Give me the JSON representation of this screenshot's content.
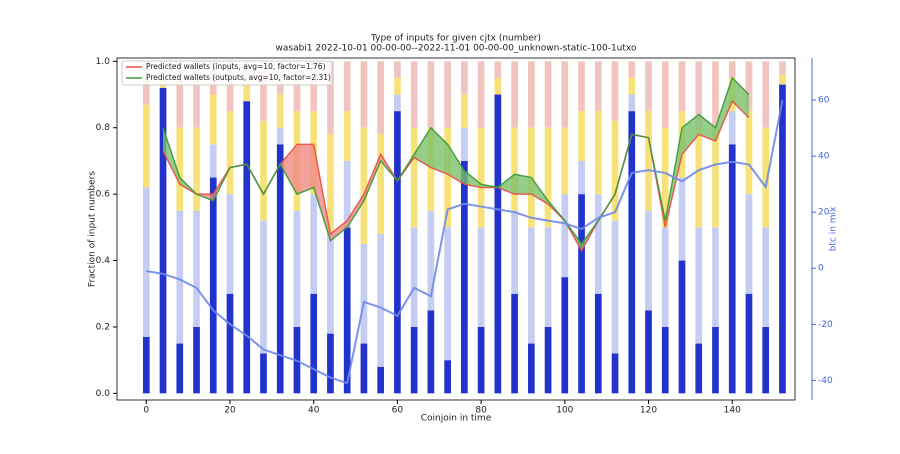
{
  "chart_data": {
    "type": "bar",
    "title": "Type of inputs for given cjtx (number)",
    "subtitle": "wasabi1 2022-10-01 00-00-00--2022-11-01 00-00-00_unknown-static-100-1utxo",
    "x_label": "Coinjoin in time",
    "y_label": "Fraction of input numbers",
    "y2_label": "btc in mix",
    "x": [
      0,
      4,
      8,
      12,
      16,
      20,
      24,
      28,
      32,
      36,
      40,
      44,
      48,
      52,
      56,
      60,
      64,
      68,
      72,
      76,
      80,
      84,
      88,
      92,
      96,
      100,
      104,
      108,
      112,
      116,
      120,
      124,
      128,
      132,
      136,
      140,
      144,
      148,
      152
    ],
    "xlim": [
      -7,
      155
    ],
    "xticks": [
      0,
      20,
      40,
      60,
      80,
      100,
      120,
      140
    ],
    "ylim": [
      -0.02,
      1.01
    ],
    "yticks": [
      {
        "value": 0,
        "label": "0.0"
      },
      {
        "value": 0.2,
        "label": "0.2"
      },
      {
        "value": 0.4,
        "label": "0.4"
      },
      {
        "value": 0.6,
        "label": "0.6"
      },
      {
        "value": 0.8,
        "label": "0.8"
      },
      {
        "value": 1,
        "label": "1.0"
      }
    ],
    "y2lim": [
      -47,
      75
    ],
    "y2ticks": [
      -40,
      -20,
      0,
      20,
      40,
      60
    ],
    "legend": "upper left",
    "stack_series": [
      {
        "color": "#2233cc",
        "values": [
          0.17,
          0.92,
          0.15,
          0.2,
          0.65,
          0.3,
          0.88,
          0.12,
          0.75,
          0.2,
          0.3,
          0.18,
          0.5,
          0.15,
          0.08,
          0.85,
          0.2,
          0.25,
          0.1,
          0.7,
          0.2,
          0.9,
          0.3,
          0.15,
          0.2,
          0.35,
          0.6,
          0.3,
          0.12,
          0.85,
          0.25,
          0.2,
          0.4,
          0.15,
          0.2,
          0.75,
          0.3,
          0.2,
          0.93
        ]
      },
      {
        "color": "#c5cdf2",
        "values": [
          0.45,
          0,
          0.4,
          0.35,
          0.1,
          0.3,
          0,
          0.4,
          0.05,
          0.35,
          0.3,
          0.3,
          0.2,
          0.3,
          0.4,
          0.05,
          0.3,
          0.3,
          0.4,
          0.1,
          0.3,
          0,
          0.25,
          0.35,
          0.3,
          0.25,
          0.1,
          0.3,
          0.4,
          0.05,
          0.3,
          0.3,
          0.25,
          0.35,
          0.3,
          0.1,
          0.3,
          0.3,
          0
        ]
      },
      {
        "color": "#f7e27a",
        "values": [
          0.25,
          0.03,
          0.25,
          0.25,
          0.15,
          0.25,
          0.07,
          0.3,
          0.1,
          0.3,
          0.25,
          0.3,
          0.15,
          0.35,
          0.3,
          0.05,
          0.3,
          0.25,
          0.3,
          0.1,
          0.3,
          0.05,
          0.25,
          0.3,
          0.3,
          0.2,
          0.15,
          0.25,
          0.3,
          0.05,
          0.3,
          0.3,
          0.2,
          0.3,
          0.3,
          0.1,
          0.25,
          0.3,
          0.03
        ]
      },
      {
        "color": "#f2c4c0",
        "values": [
          0.13,
          0.05,
          0.2,
          0.2,
          0.1,
          0.15,
          0.05,
          0.18,
          0.1,
          0.15,
          0.15,
          0.22,
          0.15,
          0.2,
          0.22,
          0.05,
          0.2,
          0.2,
          0.2,
          0.1,
          0.2,
          0.05,
          0.2,
          0.2,
          0.2,
          0.2,
          0.15,
          0.15,
          0.18,
          0.05,
          0.15,
          0.2,
          0.15,
          0.2,
          0.2,
          0.05,
          0.15,
          0.2,
          0.04
        ]
      }
    ],
    "series": [
      {
        "name": "Predicted wallets (inputs, avg=10, factor=1.76)",
        "color": "#e8504a",
        "values": [
          null,
          0.73,
          0.63,
          0.6,
          0.6,
          0.68,
          0.69,
          0.6,
          0.69,
          0.75,
          0.75,
          0.48,
          0.52,
          0.6,
          0.72,
          0.64,
          0.71,
          0.68,
          0.66,
          0.63,
          0.62,
          0.62,
          0.6,
          0.6,
          0.57,
          0.52,
          0.43,
          0.52,
          0.6,
          0.78,
          0.77,
          0.5,
          0.72,
          0.78,
          0.76,
          0.88,
          0.83,
          null,
          null
        ]
      },
      {
        "name": "Predicted wallets (outputs, avg=10, factor=2.31)",
        "color": "#3a9a3a",
        "values": [
          null,
          0.8,
          0.65,
          0.6,
          0.58,
          0.68,
          0.69,
          0.6,
          0.69,
          0.6,
          0.62,
          0.46,
          0.5,
          0.58,
          0.7,
          0.64,
          0.72,
          0.8,
          0.75,
          0.67,
          0.63,
          0.62,
          0.66,
          0.65,
          0.58,
          0.52,
          0.45,
          0.52,
          0.6,
          0.78,
          0.77,
          0.52,
          0.8,
          0.84,
          0.8,
          0.95,
          0.9,
          null,
          null
        ]
      },
      {
        "axis": "y2",
        "color": "#6f8ae8",
        "values": [
          -1,
          -2,
          -4,
          -7,
          -15,
          -20,
          -24,
          -29,
          -31,
          -33,
          -36,
          -39,
          -41,
          -12,
          -14,
          -17,
          -7,
          -10,
          21,
          23,
          22,
          21,
          20,
          18,
          17,
          16,
          14,
          18,
          20,
          34,
          35,
          34,
          31,
          35,
          37,
          38,
          37,
          29,
          60
        ]
      }
    ]
  }
}
